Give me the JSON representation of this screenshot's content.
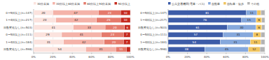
{
  "chart_data": [
    {
      "type": "bar",
      "orientation": "horizontal",
      "stacked": true,
      "data_labels": true,
      "legend": "top",
      "grid": true,
      "categories": [
        "0〜5日以上(n=147)",
        "1〜4日以上(n=217)",
        "日数変化なし(n=503)",
        "0〜5日以上(n=111)",
        "1〜4日以上(n=184)",
        "日数変化なし(n=598)"
      ],
      "series": [
        {
          "name": "30分未満",
          "color": "#fbe3de",
          "values": [
            20,
            23,
            41,
            29,
            31,
            54
          ]
        },
        {
          "name": "30分以上60分未満",
          "color": "#f4b3a9",
          "values": [
            47,
            42,
            33,
            41,
            42,
            31
          ]
        },
        {
          "name": "60分以上90分未満",
          "color": "#e57a6c",
          "values": [
            23,
            25,
            20,
            23,
            20,
            11
          ]
        },
        {
          "name": "90分以上",
          "color": "#c52a1f",
          "values": [
            10,
            10,
            6,
            7,
            7,
            4
          ]
        }
      ],
      "xlim": [
        0,
        100
      ],
      "xticks": [
        {
          "value": 0,
          "label": "0%"
        },
        {
          "value": 20,
          "label": "20%"
        },
        {
          "value": 40,
          "label": "40%"
        },
        {
          "value": 60,
          "label": "60%"
        },
        {
          "value": 80,
          "label": "80%"
        },
        {
          "value": 100,
          "label": "100%"
        }
      ]
    },
    {
      "type": "bar",
      "orientation": "horizontal",
      "stacked": true,
      "data_labels": true,
      "legend": "top",
      "grid": true,
      "categories": [
        "0〜5日以上(n=147)",
        "1〜4日以上(n=217)",
        "日数変化なし(n=503)",
        "0〜5日以上(n=111)",
        "1〜4日以上(n=184)",
        "日数変化なし(n=598)"
      ],
      "series": [
        {
          "name": "公共交通機関(電車・バス)",
          "color": "#3d5ca8",
          "values": [
            81,
            76,
            61,
            57,
            54,
            38
          ]
        },
        {
          "name": "自動車",
          "color": "#86a8dc",
          "values": [
            11,
            15,
            30,
            31,
            31,
            45
          ]
        },
        {
          "name": "自転車・徒歩",
          "color": "#f1c45e",
          "values": [
            4,
            6,
            6,
            8,
            11,
            12
          ]
        },
        {
          "name": "その他",
          "color": "#b3b3b3",
          "values": [
            4,
            3,
            3,
            4,
            4,
            5
          ]
        }
      ],
      "xlim": [
        0,
        100
      ],
      "xticks": [
        {
          "value": 0,
          "label": "0%"
        },
        {
          "value": 20,
          "label": "20%"
        },
        {
          "value": 40,
          "label": "40%"
        },
        {
          "value": 60,
          "label": "60%"
        },
        {
          "value": 80,
          "label": "80%"
        },
        {
          "value": 100,
          "label": "100%"
        }
      ]
    }
  ]
}
